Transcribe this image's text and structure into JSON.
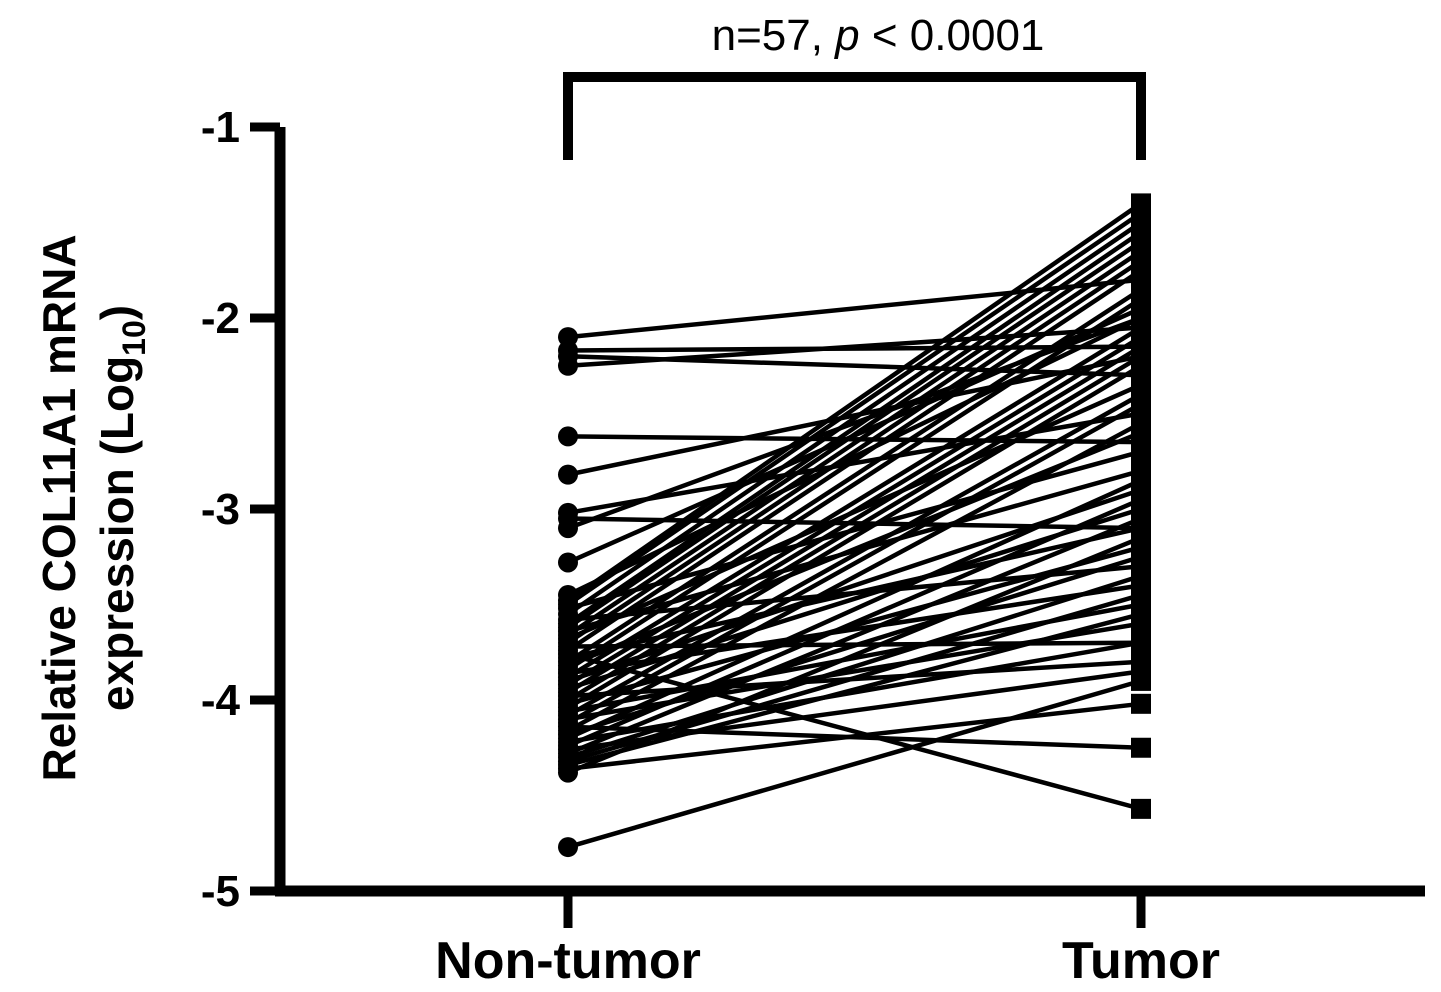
{
  "chart_data": {
    "type": "line",
    "subtype": "paired-dot-plot",
    "categories": [
      "Non-tumor",
      "Tumor"
    ],
    "ylabel_main": "Relative COL11A1 mRNA",
    "ylabel_second": "expression (Log",
    "ylabel_sub": "10",
    "ylabel_close": ")",
    "ylim": [
      -5,
      -1
    ],
    "yticks": [
      "-1",
      "-2",
      "-3",
      "-4",
      "-5"
    ],
    "yticks_values": [
      -1,
      -2,
      -3,
      -4,
      -5
    ],
    "annotation": {
      "n_text": "n=57, ",
      "p_symbol": "p",
      "p_text": " < 0.0001"
    },
    "markers": {
      "Non-tumor": "circle",
      "Tumor": "square"
    },
    "pairs": [
      [
        -2.1,
        -1.8
      ],
      [
        -2.17,
        -2.15
      ],
      [
        -2.2,
        -2.3
      ],
      [
        -2.25,
        -2.05
      ],
      [
        -2.62,
        -2.65
      ],
      [
        -2.82,
        -2.2
      ],
      [
        -3.02,
        -2.5
      ],
      [
        -3.05,
        -3.1
      ],
      [
        -3.1,
        -2.0
      ],
      [
        -3.28,
        -1.95
      ],
      [
        -3.48,
        -1.4
      ],
      [
        -3.5,
        -1.45
      ],
      [
        -3.52,
        -2.7
      ],
      [
        -3.55,
        -1.5
      ],
      [
        -3.58,
        -3.3
      ],
      [
        -3.6,
        -1.55
      ],
      [
        -3.62,
        -1.6
      ],
      [
        -3.64,
        -2.8
      ],
      [
        -3.66,
        -1.65
      ],
      [
        -3.68,
        -2.35
      ],
      [
        -3.7,
        -1.7
      ],
      [
        -3.72,
        -3.7
      ],
      [
        -3.74,
        -1.75
      ],
      [
        -3.76,
        -4.57
      ],
      [
        -3.78,
        -3.1
      ],
      [
        -3.8,
        -1.85
      ],
      [
        -3.82,
        -2.6
      ],
      [
        -3.84,
        -1.9
      ],
      [
        -3.86,
        -3.4
      ],
      [
        -3.88,
        -2.05
      ],
      [
        -3.9,
        -2.9
      ],
      [
        -3.92,
        -2.1
      ],
      [
        -3.94,
        -3.0
      ],
      [
        -3.96,
        -2.15
      ],
      [
        -3.98,
        -3.8
      ],
      [
        -4.0,
        -2.2
      ],
      [
        -4.02,
        -3.2
      ],
      [
        -4.04,
        -2.25
      ],
      [
        -4.06,
        -3.5
      ],
      [
        -4.08,
        -2.4
      ],
      [
        -4.1,
        -3.6
      ],
      [
        -4.12,
        -2.45
      ],
      [
        -4.14,
        -4.25
      ],
      [
        -4.16,
        -2.55
      ],
      [
        -4.18,
        -3.25
      ],
      [
        -4.2,
        -2.85
      ],
      [
        -4.22,
        -3.7
      ],
      [
        -4.24,
        -2.95
      ],
      [
        -4.26,
        -3.85
      ],
      [
        -4.28,
        -3.05
      ],
      [
        -4.3,
        -3.35
      ],
      [
        -4.32,
        -3.45
      ],
      [
        -4.34,
        -3.55
      ],
      [
        -4.36,
        -4.02
      ],
      [
        -4.38,
        -3.15
      ],
      [
        -3.45,
        -2.0
      ],
      [
        -4.77,
        -3.9
      ]
    ]
  }
}
